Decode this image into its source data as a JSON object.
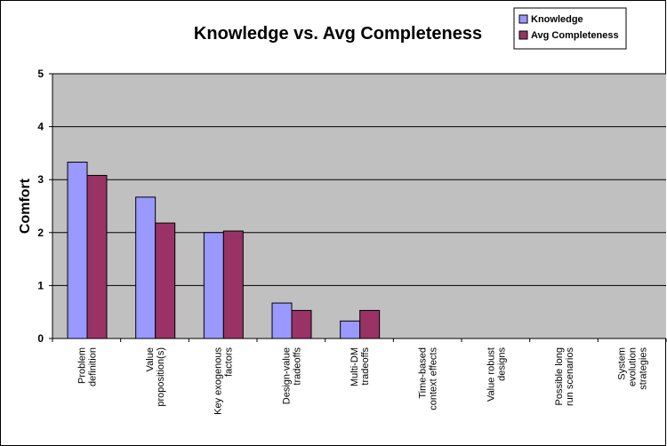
{
  "chart_data": {
    "type": "bar",
    "title": "Knowledge vs. Avg Completeness",
    "xlabel": "",
    "ylabel": "Comfort",
    "ylim": [
      0,
      5
    ],
    "yticks": [
      0,
      1,
      2,
      3,
      4,
      5
    ],
    "grid": true,
    "legend": "top-right",
    "categories": [
      [
        "Problem",
        "definition"
      ],
      [
        "Value",
        "proposition(s)"
      ],
      [
        "Key exogenous",
        "factors"
      ],
      [
        "Design-value",
        "tradeoffs"
      ],
      [
        "Multi-DM",
        "tradeoffs"
      ],
      [
        "Time-based",
        "context effects"
      ],
      [
        "Value robust",
        "designs"
      ],
      [
        "Possible long",
        "run scenarios"
      ],
      [
        "System",
        "evolution",
        "strategies"
      ]
    ],
    "series": [
      {
        "name": "Knowledge",
        "color": "#9999ff",
        "values": [
          3.33,
          2.67,
          2.0,
          0.67,
          0.33,
          0,
          0,
          0,
          0
        ]
      },
      {
        "name": "Avg Completeness",
        "color": "#993366",
        "values": [
          3.08,
          2.18,
          2.03,
          0.53,
          0.53,
          0,
          0,
          0,
          0
        ]
      }
    ],
    "plot_background": "#c0c0c0"
  }
}
